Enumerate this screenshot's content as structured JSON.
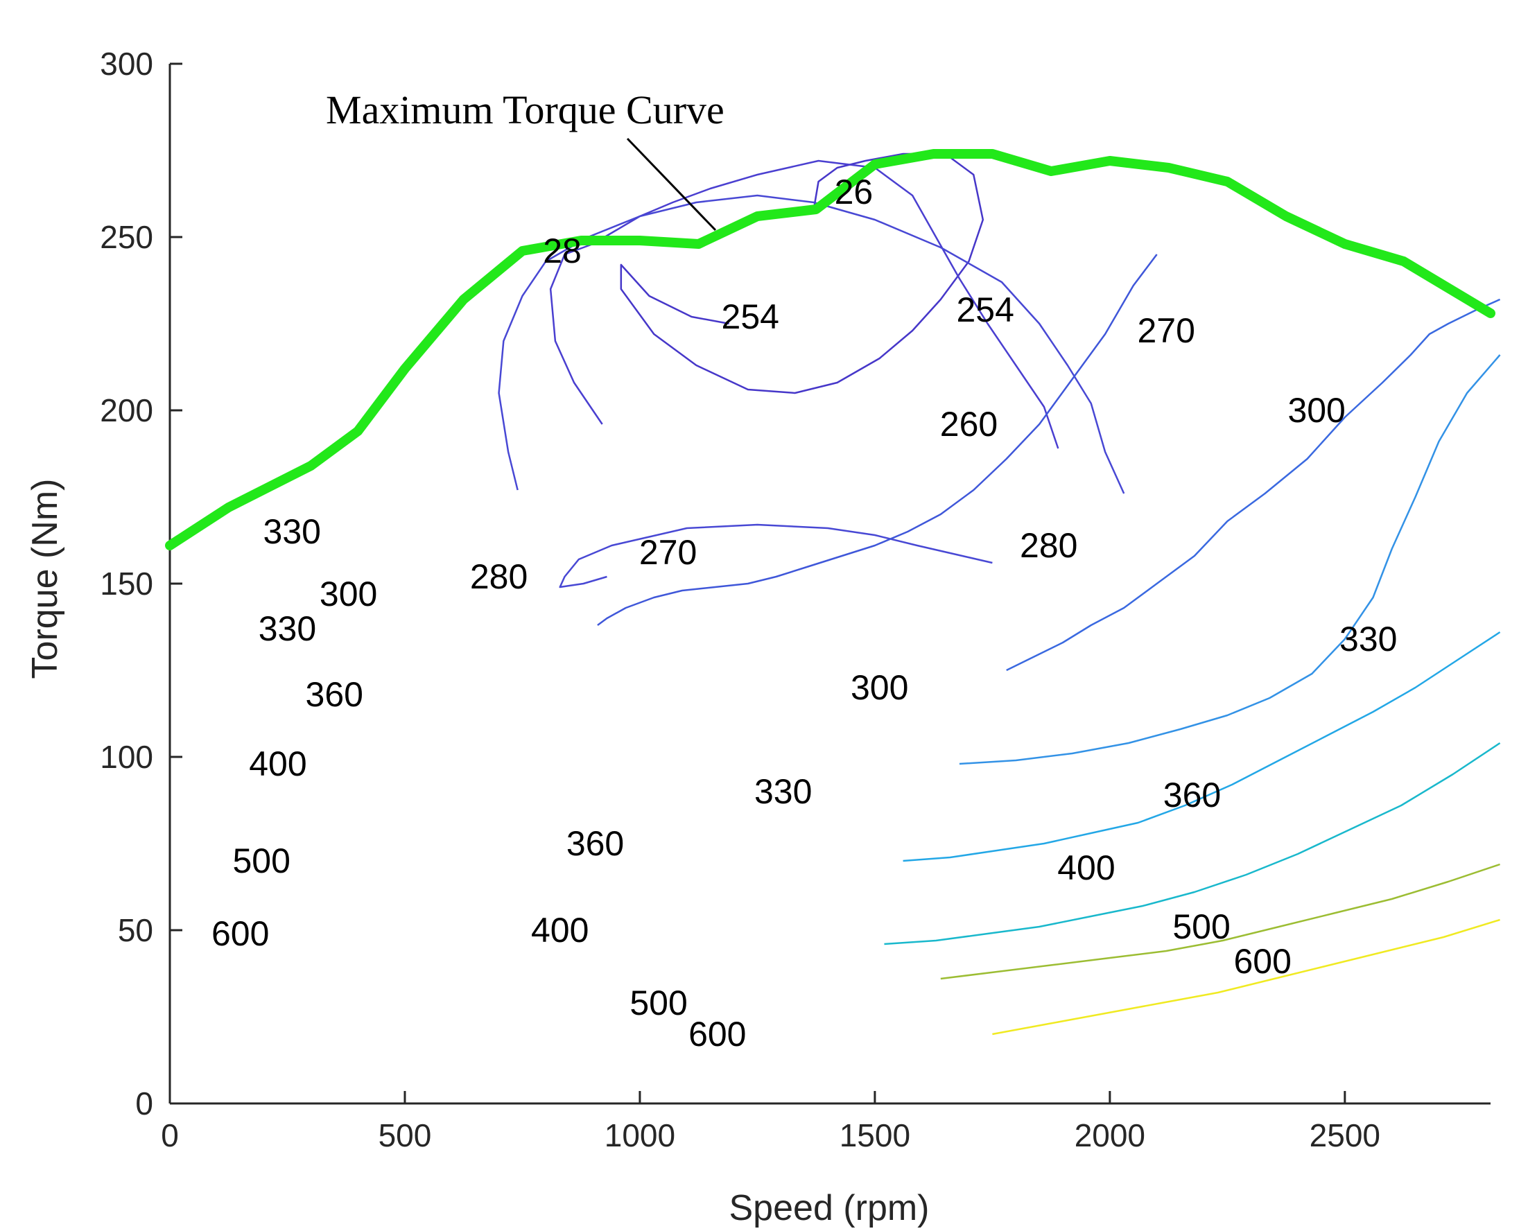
{
  "chart_data": {
    "type": "contour",
    "title": "",
    "xlabel": "Speed (rpm)",
    "ylabel": "Torque (Nm)",
    "xlim": [
      0,
      2810
    ],
    "ylim": [
      0,
      300
    ],
    "xticks": [
      0,
      500,
      1000,
      1500,
      2000,
      2500
    ],
    "yticks": [
      0,
      50,
      100,
      150,
      200,
      250,
      300
    ],
    "annotation": "Maximum Torque Curve",
    "colors": {
      "max_torque": "#22e81a",
      "254": "#4637c9",
      "260": "#4a3fd0",
      "270": "#4848d4",
      "280": "#3f57d9",
      "300": "#3a69e0",
      "330": "#3392e6",
      "360": "#23a7e6",
      "400": "#19b8cc",
      "500": "#9cbd33",
      "600": "#f0ea22"
    },
    "max_torque_curve": {
      "x": [
        0,
        125,
        300,
        400,
        500,
        625,
        750,
        875,
        1000,
        1125,
        1250,
        1375,
        1500,
        1625,
        1750,
        1875,
        2000,
        2125,
        2250,
        2375,
        2500,
        2625,
        2810
      ],
      "y": [
        161,
        172,
        184,
        194,
        212,
        232,
        246,
        249,
        249,
        248,
        256,
        258,
        271,
        274,
        274,
        269,
        272,
        270,
        266,
        256,
        248,
        243,
        228
      ]
    },
    "contours": [
      {
        "level": 254,
        "label": "254",
        "x": [
          1190,
          1110,
          1020,
          960,
          960,
          1030,
          1120,
          1230,
          1330,
          1420,
          1510,
          1580,
          1640,
          1700,
          1730,
          1710,
          1650,
          1560,
          1480,
          1420,
          1380,
          1370
        ],
        "y": [
          225,
          227,
          233,
          242,
          235,
          222,
          213,
          206,
          205,
          208,
          215,
          223,
          232,
          243,
          255,
          268,
          274,
          274,
          272,
          270,
          266,
          258
        ]
      },
      {
        "level": 260,
        "label": "260",
        "x": [
          1890,
          1860,
          1800,
          1740,
          1680,
          1630,
          1580,
          1500,
          1380,
          1250,
          1150,
          1070,
          1000,
          950,
          900,
          840,
          810,
          820,
          860,
          920
        ],
        "y": [
          189,
          201,
          213,
          225,
          238,
          250,
          262,
          270,
          272,
          268,
          264,
          260,
          256,
          252,
          248,
          245,
          235,
          220,
          208,
          196
        ]
      },
      {
        "level": 270,
        "label": "270",
        "x": [
          2030,
          1990,
          1960,
          1910,
          1850,
          1770,
          1640,
          1500,
          1370,
          1250,
          1120,
          1000,
          890,
          800,
          750,
          710,
          700,
          720,
          740
        ],
        "y": [
          176,
          188,
          202,
          213,
          225,
          237,
          247,
          255,
          260,
          262,
          260,
          256,
          250,
          243,
          233,
          220,
          205,
          188,
          177
        ]
      },
      {
        "level": 270,
        "label": "270",
        "x": [
          1750,
          1590,
          1500,
          1400,
          1250,
          1100,
          940,
          870,
          840,
          830,
          880,
          930
        ],
        "y": [
          156,
          161,
          164,
          166,
          167,
          166,
          161,
          157,
          152,
          149,
          150,
          152
        ]
      },
      {
        "level": 280,
        "label": "280",
        "x": [
          2100,
          2050,
          1990,
          1920,
          1850,
          1780,
          1710,
          1640,
          1570,
          1500,
          1430,
          1360,
          1290,
          1230,
          1160,
          1090,
          1030,
          970,
          930,
          910
        ],
        "y": [
          245,
          236,
          222,
          209,
          196,
          186,
          177,
          170,
          165,
          161,
          158,
          155,
          152,
          150,
          149,
          148,
          146,
          143,
          140,
          138
        ]
      },
      {
        "level": 300,
        "label": "300",
        "x": [
          2830,
          2780,
          2720,
          2680,
          2640,
          2580,
          2500,
          2420,
          2330,
          2250,
          2180,
          2100,
          2030,
          1960,
          1900,
          1840,
          1780
        ],
        "y": [
          232,
          229,
          225,
          222,
          216,
          208,
          198,
          186,
          176,
          168,
          158,
          150,
          143,
          138,
          133,
          129,
          125
        ]
      },
      {
        "level": 330,
        "label": "330",
        "x": [
          2830,
          2760,
          2700,
          2650,
          2600,
          2560,
          2500,
          2430,
          2340,
          2250,
          2150,
          2040,
          1920,
          1800,
          1680
        ],
        "y": [
          216,
          205,
          191,
          175,
          160,
          146,
          134,
          124,
          117,
          112,
          108,
          104,
          101,
          99,
          98
        ]
      },
      {
        "level": 360,
        "label": "360",
        "x": [
          2830,
          2740,
          2650,
          2560,
          2460,
          2360,
          2260,
          2160,
          2060,
          1960,
          1860,
          1760,
          1660,
          1560
        ],
        "y": [
          136,
          128,
          120,
          113,
          106,
          99,
          92,
          86,
          81,
          78,
          75,
          73,
          71,
          70
        ]
      },
      {
        "level": 400,
        "label": "400",
        "x": [
          2830,
          2730,
          2620,
          2510,
          2400,
          2290,
          2180,
          2070,
          1960,
          1850,
          1740,
          1630,
          1520
        ],
        "y": [
          104,
          95,
          86,
          79,
          72,
          66,
          61,
          57,
          54,
          51,
          49,
          47,
          46
        ]
      },
      {
        "level": 500,
        "label": "500",
        "x": [
          2830,
          2720,
          2600,
          2480,
          2360,
          2240,
          2120,
          2000,
          1880,
          1760,
          1640
        ],
        "y": [
          69,
          64,
          59,
          55,
          51,
          47,
          44,
          42,
          40,
          38,
          36
        ]
      },
      {
        "level": 600,
        "label": "600",
        "x": [
          2830,
          2710,
          2590,
          2470,
          2350,
          2230,
          2110,
          1990,
          1870,
          1750
        ],
        "y": [
          53,
          48,
          44,
          40,
          36,
          32,
          29,
          26,
          23,
          20
        ]
      }
    ],
    "contour_labels": [
      {
        "text": "254",
        "x": 1235,
        "y": 227
      },
      {
        "text": "254",
        "x": 1735,
        "y": 229
      },
      {
        "text": "260",
        "x": 1700,
        "y": 196
      },
      {
        "text": "270",
        "x": 2120,
        "y": 223
      },
      {
        "text": "270",
        "x": 1060,
        "y": 159
      },
      {
        "text": "280",
        "x": 1870,
        "y": 161
      },
      {
        "text": "280",
        "x": 700,
        "y": 152
      },
      {
        "text": "300",
        "x": 2440,
        "y": 200
      },
      {
        "text": "300",
        "x": 380,
        "y": 147
      },
      {
        "text": "300",
        "x": 1510,
        "y": 120
      },
      {
        "text": "330",
        "x": 260,
        "y": 165
      },
      {
        "text": "330",
        "x": 250,
        "y": 137
      },
      {
        "text": "330",
        "x": 2550,
        "y": 134
      },
      {
        "text": "330",
        "x": 1305,
        "y": 90
      },
      {
        "text": "360",
        "x": 350,
        "y": 118
      },
      {
        "text": "360",
        "x": 2175,
        "y": 89
      },
      {
        "text": "360",
        "x": 905,
        "y": 75
      },
      {
        "text": "400",
        "x": 230,
        "y": 98
      },
      {
        "text": "400",
        "x": 1950,
        "y": 68
      },
      {
        "text": "400",
        "x": 830,
        "y": 50
      },
      {
        "text": "500",
        "x": 195,
        "y": 70
      },
      {
        "text": "500",
        "x": 2195,
        "y": 51
      },
      {
        "text": "500",
        "x": 1040,
        "y": 29
      },
      {
        "text": "600",
        "x": 150,
        "y": 49
      },
      {
        "text": "600",
        "x": 2325,
        "y": 41
      },
      {
        "text": "600",
        "x": 1165,
        "y": 20
      },
      {
        "text": "28",
        "x": 835,
        "y": 246
      },
      {
        "text": "26",
        "x": 1455,
        "y": 263
      }
    ]
  }
}
